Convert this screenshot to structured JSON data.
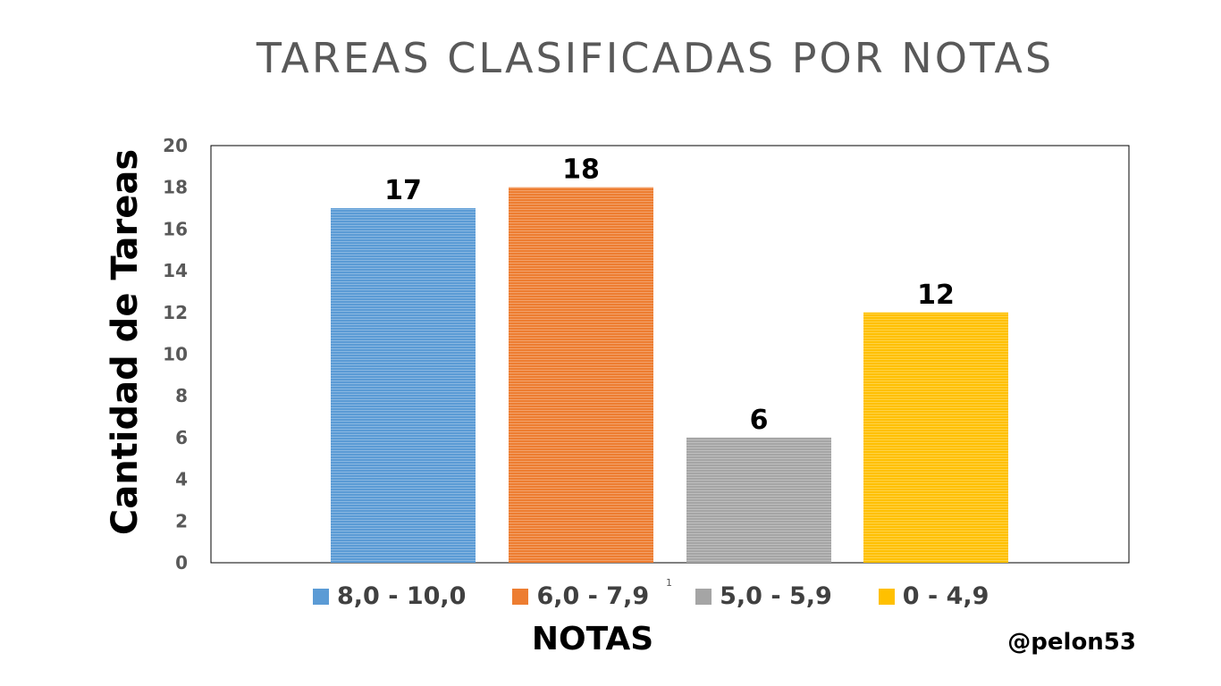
{
  "title": "TAREAS CLASIFICADAS POR NOTAS",
  "handle": "@pelon53",
  "footnote": "1",
  "chart_data": {
    "type": "bar",
    "title": "TAREAS CLASIFICADAS POR NOTAS",
    "xlabel": "NOTAS",
    "ylabel": "Cantidad de Tareas",
    "ylim": [
      0,
      20
    ],
    "yticks": [
      0,
      2,
      4,
      6,
      8,
      10,
      12,
      14,
      16,
      18,
      20
    ],
    "grid": false,
    "legend_position": "bottom",
    "series": [
      {
        "name": "8,0 - 10,0",
        "value": 17,
        "color": "#5B9BD5"
      },
      {
        "name": "6,0 - 7,9",
        "value": 18,
        "color": "#ED7D31"
      },
      {
        "name": "5,0 - 5,9",
        "value": 6,
        "color": "#A5A5A5"
      },
      {
        "name": "0 - 4,9",
        "value": 12,
        "color": "#FFC000"
      }
    ]
  }
}
